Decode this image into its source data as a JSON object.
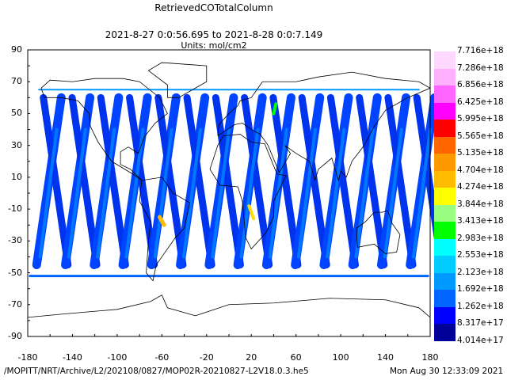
{
  "title": "RetrievedCOTotalColumn",
  "subtitle": "2021-8-27 0:0:56.695 to 2021-8-28 0:0:7.149",
  "units": "Units: mol/cm2",
  "map": {
    "lat_ticks": [
      "90",
      "70",
      "50",
      "30",
      "10",
      "-10",
      "-30",
      "-50",
      "-70",
      "-90"
    ],
    "lon_ticks": [
      "-180",
      "-140",
      "-100",
      "-60",
      "-20",
      "20",
      "60",
      "100",
      "140",
      "180"
    ],
    "lon_range": [
      -180,
      180
    ],
    "lat_range": [
      -90,
      90
    ]
  },
  "colorbar": {
    "labels": [
      "7.716e+18",
      "7.286e+18",
      "6.856e+18",
      "6.425e+18",
      "5.995e+18",
      "5.565e+18",
      "5.135e+18",
      "4.704e+18",
      "4.274e+18",
      "3.844e+18",
      "3.413e+18",
      "2.983e+18",
      "2.553e+18",
      "2.123e+18",
      "1.692e+18",
      "1.262e+18",
      "8.317e+17",
      "4.014e+17"
    ],
    "colors": [
      "#ffd8ff",
      "#ffb0ff",
      "#ff66ff",
      "#ff00ff",
      "#ff0000",
      "#ff6600",
      "#ff9900",
      "#ffbb00",
      "#ffff00",
      "#99ff80",
      "#00ff00",
      "#00ffff",
      "#00ccff",
      "#0099ff",
      "#0066ff",
      "#0000ff",
      "#000099"
    ]
  },
  "footer": {
    "path": "/MOPITT/NRT/Archive/L2/202108/0827/MOP02R-20210827-L2V18.0.3.he5",
    "timestamp": "Mon Aug 30 12:33:09 2021"
  }
}
